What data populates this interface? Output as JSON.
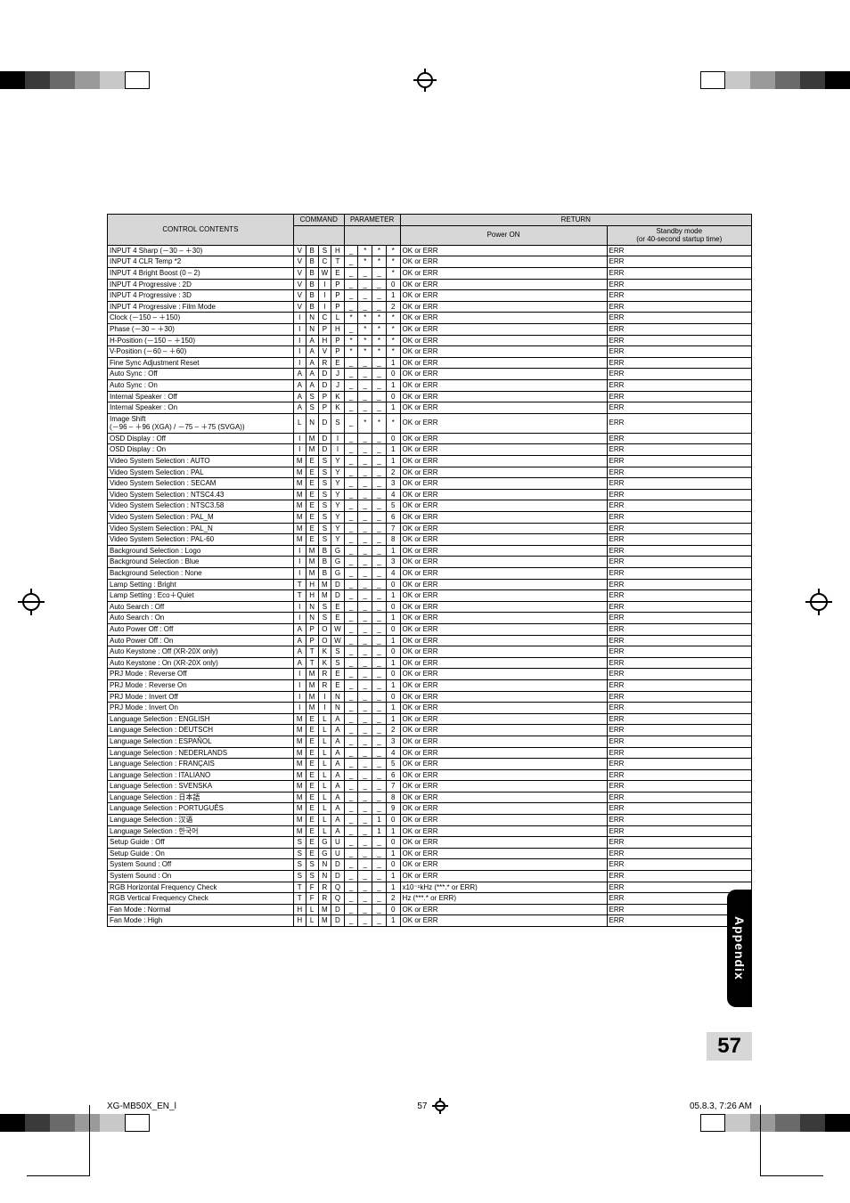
{
  "reg_colors": [
    "#000000",
    "#3a3a3a",
    "#6a6a6a",
    "#9a9a9a",
    "#c8c8c8",
    "#ffffff"
  ],
  "header": {
    "control_contents": "CONTROL CONTENTS",
    "command": "COMMAND",
    "parameter": "PARAMETER",
    "return": "RETURN",
    "power_on": "Power ON",
    "standby": "Standby mode\n(or 40-second startup time)"
  },
  "appendix": "Appendix",
  "page_number": "57",
  "footer_left": "XG-MB50X_EN_l",
  "footer_mid": "57",
  "footer_right": "05.8.3, 7:26 AM",
  "rows": [
    {
      "solid": true,
      "label": "INPUT 4 Sharp (－30 – ＋30)",
      "cmd": [
        "V",
        "B",
        "S",
        "H"
      ],
      "par": [
        "_",
        "*",
        "*",
        "*"
      ],
      "on": "OK or ERR",
      "sb": "ERR"
    },
    {
      "solid": true,
      "label": "INPUT 4 CLR Temp *2",
      "cmd": [
        "V",
        "B",
        "C",
        "T"
      ],
      "par": [
        "_",
        "*",
        "*",
        "*"
      ],
      "on": "OK or ERR",
      "sb": "ERR"
    },
    {
      "solid": true,
      "label": "INPUT 4 Bright Boost (0 – 2)",
      "cmd": [
        "V",
        "B",
        "W",
        "E"
      ],
      "par": [
        "_",
        "_",
        "_",
        "*"
      ],
      "on": "OK or ERR",
      "sb": "ERR"
    },
    {
      "solid": true,
      "label": "INPUT 4 Progressive : 2D",
      "cmd": [
        "V",
        "B",
        "I",
        "P"
      ],
      "par": [
        "_",
        "_",
        "_",
        "0"
      ],
      "on": "OK or ERR",
      "sb": "ERR"
    },
    {
      "label": "INPUT 4 Progressive : 3D",
      "cmd": [
        "V",
        "B",
        "I",
        "P"
      ],
      "par": [
        "_",
        "_",
        "_",
        "1"
      ],
      "on": "OK or ERR",
      "sb": "ERR"
    },
    {
      "label": "INPUT 4 Progressive : Film Mode",
      "cmd": [
        "V",
        "B",
        "I",
        "P"
      ],
      "par": [
        "_",
        "_",
        "_",
        "2"
      ],
      "on": "OK or ERR",
      "sb": "ERR"
    },
    {
      "solid": true,
      "label": "Clock (－150 – ＋150)",
      "cmd": [
        "I",
        "N",
        "C",
        "L"
      ],
      "par": [
        "*",
        "*",
        "*",
        "*"
      ],
      "on": "OK or ERR",
      "sb": "ERR"
    },
    {
      "solid": true,
      "label": "Phase (－30 – ＋30)",
      "cmd": [
        "I",
        "N",
        "P",
        "H"
      ],
      "par": [
        "_",
        "*",
        "*",
        "*"
      ],
      "on": "OK or ERR",
      "sb": "ERR"
    },
    {
      "solid": true,
      "label": "H-Position (－150 – ＋150)",
      "cmd": [
        "I",
        "A",
        "H",
        "P"
      ],
      "par": [
        "*",
        "*",
        "*",
        "*"
      ],
      "on": "OK or ERR",
      "sb": "ERR"
    },
    {
      "solid": true,
      "label": "V-Position (－60 – ＋60)",
      "cmd": [
        "I",
        "A",
        "V",
        "P"
      ],
      "par": [
        "*",
        "*",
        "*",
        "*"
      ],
      "on": "OK or ERR",
      "sb": "ERR"
    },
    {
      "solid": true,
      "label": "Fine Sync Adjustment Reset",
      "cmd": [
        "I",
        "A",
        "R",
        "E"
      ],
      "par": [
        "_",
        "_",
        "_",
        "1"
      ],
      "on": "OK or ERR",
      "sb": "ERR"
    },
    {
      "solid": true,
      "label": "Auto Sync : Off",
      "cmd": [
        "A",
        "A",
        "D",
        "J"
      ],
      "par": [
        "_",
        "_",
        "_",
        "0"
      ],
      "on": "OK or ERR",
      "sb": "ERR"
    },
    {
      "label": "Auto Sync : On",
      "cmd": [
        "A",
        "A",
        "D",
        "J"
      ],
      "par": [
        "_",
        "_",
        "_",
        "1"
      ],
      "on": "OK or ERR",
      "sb": "ERR"
    },
    {
      "solid": true,
      "label": "Internal Speaker : Off",
      "cmd": [
        "A",
        "S",
        "P",
        "K"
      ],
      "par": [
        "_",
        "_",
        "_",
        "0"
      ],
      "on": "OK or ERR",
      "sb": "ERR"
    },
    {
      "label": "Internal Speaker : On",
      "cmd": [
        "A",
        "S",
        "P",
        "K"
      ],
      "par": [
        "_",
        "_",
        "_",
        "1"
      ],
      "on": "OK or ERR",
      "sb": "ERR"
    },
    {
      "solid": true,
      "label": "Image Shift\n(－96 – ＋96 (XGA) / －75 – ＋75 (SVGA))",
      "cmd": [
        "L",
        "N",
        "D",
        "S"
      ],
      "par": [
        "_",
        "*",
        "*",
        "*"
      ],
      "on": "OK or ERR",
      "sb": "ERR"
    },
    {
      "solid": true,
      "label": "OSD Display : Off",
      "cmd": [
        "I",
        "M",
        "D",
        "I"
      ],
      "par": [
        "_",
        "_",
        "_",
        "0"
      ],
      "on": "OK or ERR",
      "sb": "ERR"
    },
    {
      "label": "OSD Display : On",
      "cmd": [
        "I",
        "M",
        "D",
        "I"
      ],
      "par": [
        "_",
        "_",
        "_",
        "1"
      ],
      "on": "OK or ERR",
      "sb": "ERR"
    },
    {
      "solid": true,
      "label": "Video System Selection : AUTO",
      "cmd": [
        "M",
        "E",
        "S",
        "Y"
      ],
      "par": [
        "_",
        "_",
        "_",
        "1"
      ],
      "on": "OK or ERR",
      "sb": "ERR"
    },
    {
      "label": "Video System Selection : PAL",
      "cmd": [
        "M",
        "E",
        "S",
        "Y"
      ],
      "par": [
        "_",
        "_",
        "_",
        "2"
      ],
      "on": "OK or ERR",
      "sb": "ERR"
    },
    {
      "label": "Video System Selection : SECAM",
      "cmd": [
        "M",
        "E",
        "S",
        "Y"
      ],
      "par": [
        "_",
        "_",
        "_",
        "3"
      ],
      "on": "OK or ERR",
      "sb": "ERR"
    },
    {
      "label": "Video System Selection : NTSC4.43",
      "cmd": [
        "M",
        "E",
        "S",
        "Y"
      ],
      "par": [
        "_",
        "_",
        "_",
        "4"
      ],
      "on": "OK or ERR",
      "sb": "ERR"
    },
    {
      "label": "Video System Selection : NTSC3.58",
      "cmd": [
        "M",
        "E",
        "S",
        "Y"
      ],
      "par": [
        "_",
        "_",
        "_",
        "5"
      ],
      "on": "OK or ERR",
      "sb": "ERR"
    },
    {
      "label": "Video System Selection : PAL_M",
      "cmd": [
        "M",
        "E",
        "S",
        "Y"
      ],
      "par": [
        "_",
        "_",
        "_",
        "6"
      ],
      "on": "OK or ERR",
      "sb": "ERR"
    },
    {
      "label": "Video System Selection : PAL_N",
      "cmd": [
        "M",
        "E",
        "S",
        "Y"
      ],
      "par": [
        "_",
        "_",
        "_",
        "7"
      ],
      "on": "OK or ERR",
      "sb": "ERR"
    },
    {
      "label": "Video System Selection : PAL-60",
      "cmd": [
        "M",
        "E",
        "S",
        "Y"
      ],
      "par": [
        "_",
        "_",
        "_",
        "8"
      ],
      "on": "OK or ERR",
      "sb": "ERR"
    },
    {
      "solid": true,
      "label": "Background Selection : Logo",
      "cmd": [
        "I",
        "M",
        "B",
        "G"
      ],
      "par": [
        "_",
        "_",
        "_",
        "1"
      ],
      "on": "OK or ERR",
      "sb": "ERR"
    },
    {
      "label": "Background Selection : Blue",
      "cmd": [
        "I",
        "M",
        "B",
        "G"
      ],
      "par": [
        "_",
        "_",
        "_",
        "3"
      ],
      "on": "OK or ERR",
      "sb": "ERR"
    },
    {
      "label": "Background Selection : None",
      "cmd": [
        "I",
        "M",
        "B",
        "G"
      ],
      "par": [
        "_",
        "_",
        "_",
        "4"
      ],
      "on": "OK or ERR",
      "sb": "ERR"
    },
    {
      "solid": true,
      "label": "Lamp Setting : Bright",
      "cmd": [
        "T",
        "H",
        "M",
        "D"
      ],
      "par": [
        "_",
        "_",
        "_",
        "0"
      ],
      "on": "OK or ERR",
      "sb": "ERR"
    },
    {
      "label": "Lamp Setting : Eco＋Quiet",
      "cmd": [
        "T",
        "H",
        "M",
        "D"
      ],
      "par": [
        "_",
        "_",
        "_",
        "1"
      ],
      "on": "OK or ERR",
      "sb": "ERR"
    },
    {
      "solid": true,
      "label": "Auto Search : Off",
      "cmd": [
        "I",
        "N",
        "S",
        "E"
      ],
      "par": [
        "_",
        "_",
        "_",
        "0"
      ],
      "on": "OK or ERR",
      "sb": "ERR"
    },
    {
      "label": "Auto Search : On",
      "cmd": [
        "I",
        "N",
        "S",
        "E"
      ],
      "par": [
        "_",
        "_",
        "_",
        "1"
      ],
      "on": "OK or ERR",
      "sb": "ERR"
    },
    {
      "solid": true,
      "label": "Auto Power Off : Off",
      "cmd": [
        "A",
        "P",
        "O",
        "W"
      ],
      "par": [
        "_",
        "_",
        "_",
        "0"
      ],
      "on": "OK or ERR",
      "sb": "ERR"
    },
    {
      "label": "Auto Power Off : On",
      "cmd": [
        "A",
        "P",
        "O",
        "W"
      ],
      "par": [
        "_",
        "_",
        "_",
        "1"
      ],
      "on": "OK or ERR",
      "sb": "ERR"
    },
    {
      "solid": true,
      "label": "Auto Keystone : Off (XR-20X only)",
      "cmd": [
        "A",
        "T",
        "K",
        "S"
      ],
      "par": [
        "_",
        "_",
        "_",
        "0"
      ],
      "on": "OK or ERR",
      "sb": "ERR"
    },
    {
      "label": "Auto Keystone : On (XR-20X only)",
      "cmd": [
        "A",
        "T",
        "K",
        "S"
      ],
      "par": [
        "_",
        "_",
        "_",
        "1"
      ],
      "on": "OK or ERR",
      "sb": "ERR"
    },
    {
      "solid": true,
      "label": "PRJ Mode : Reverse Off",
      "cmd": [
        "I",
        "M",
        "R",
        "E"
      ],
      "par": [
        "_",
        "_",
        "_",
        "0"
      ],
      "on": "OK or ERR",
      "sb": "ERR"
    },
    {
      "label": "PRJ Mode : Reverse On",
      "cmd": [
        "I",
        "M",
        "R",
        "E"
      ],
      "par": [
        "_",
        "_",
        "_",
        "1"
      ],
      "on": "OK or ERR",
      "sb": "ERR"
    },
    {
      "solid": true,
      "label": "PRJ Mode : Invert Off",
      "cmd": [
        "I",
        "M",
        "I",
        "N"
      ],
      "par": [
        "_",
        "_",
        "_",
        "0"
      ],
      "on": "OK or ERR",
      "sb": "ERR"
    },
    {
      "label": "PRJ Mode : Invert On",
      "cmd": [
        "I",
        "M",
        "I",
        "N"
      ],
      "par": [
        "_",
        "_",
        "_",
        "1"
      ],
      "on": "OK or ERR",
      "sb": "ERR"
    },
    {
      "solid": true,
      "label": "Language Selection : ENGLISH",
      "cmd": [
        "M",
        "E",
        "L",
        "A"
      ],
      "par": [
        "_",
        "_",
        "_",
        "1"
      ],
      "on": "OK or ERR",
      "sb": "ERR"
    },
    {
      "label": "Language Selection : DEUTSCH",
      "cmd": [
        "M",
        "E",
        "L",
        "A"
      ],
      "par": [
        "_",
        "_",
        "_",
        "2"
      ],
      "on": "OK or ERR",
      "sb": "ERR"
    },
    {
      "label": "Language Selection : ESPAÑOL",
      "cmd": [
        "M",
        "E",
        "L",
        "A"
      ],
      "par": [
        "_",
        "_",
        "_",
        "3"
      ],
      "on": "OK or ERR",
      "sb": "ERR"
    },
    {
      "label": "Language Selection : NEDERLANDS",
      "cmd": [
        "M",
        "E",
        "L",
        "A"
      ],
      "par": [
        "_",
        "_",
        "_",
        "4"
      ],
      "on": "OK or ERR",
      "sb": "ERR"
    },
    {
      "label": "Language Selection : FRANÇAIS",
      "cmd": [
        "M",
        "E",
        "L",
        "A"
      ],
      "par": [
        "_",
        "_",
        "_",
        "5"
      ],
      "on": "OK or ERR",
      "sb": "ERR"
    },
    {
      "label": "Language Selection : ITALIANO",
      "cmd": [
        "M",
        "E",
        "L",
        "A"
      ],
      "par": [
        "_",
        "_",
        "_",
        "6"
      ],
      "on": "OK or ERR",
      "sb": "ERR"
    },
    {
      "label": "Language Selection : SVENSKA",
      "cmd": [
        "M",
        "E",
        "L",
        "A"
      ],
      "par": [
        "_",
        "_",
        "_",
        "7"
      ],
      "on": "OK or ERR",
      "sb": "ERR"
    },
    {
      "label": "Language Selection : 日本語",
      "cmd": [
        "M",
        "E",
        "L",
        "A"
      ],
      "par": [
        "_",
        "_",
        "_",
        "8"
      ],
      "on": "OK or ERR",
      "sb": "ERR"
    },
    {
      "label": "Language Selection : PORTUGUÊS",
      "cmd": [
        "M",
        "E",
        "L",
        "A"
      ],
      "par": [
        "_",
        "_",
        "_",
        "9"
      ],
      "on": "OK or ERR",
      "sb": "ERR"
    },
    {
      "label": "Language Selection : 汉语",
      "cmd": [
        "M",
        "E",
        "L",
        "A"
      ],
      "par": [
        "_",
        "_",
        "1",
        "0"
      ],
      "on": "OK or ERR",
      "sb": "ERR"
    },
    {
      "label": "Language Selection : 한국어",
      "cmd": [
        "M",
        "E",
        "L",
        "A"
      ],
      "par": [
        "_",
        "_",
        "1",
        "1"
      ],
      "on": "OK or ERR",
      "sb": "ERR"
    },
    {
      "solid": true,
      "label": "Setup Guide : Off",
      "cmd": [
        "S",
        "E",
        "G",
        "U"
      ],
      "par": [
        "_",
        "_",
        "_",
        "0"
      ],
      "on": "OK or ERR",
      "sb": "ERR"
    },
    {
      "label": "Setup Guide : On",
      "cmd": [
        "S",
        "E",
        "G",
        "U"
      ],
      "par": [
        "_",
        "_",
        "_",
        "1"
      ],
      "on": "OK or ERR",
      "sb": "ERR"
    },
    {
      "solid": true,
      "label": "System Sound : Off",
      "cmd": [
        "S",
        "S",
        "N",
        "D"
      ],
      "par": [
        "_",
        "_",
        "_",
        "0"
      ],
      "on": "OK or ERR",
      "sb": "ERR"
    },
    {
      "label": "System Sound : On",
      "cmd": [
        "S",
        "S",
        "N",
        "D"
      ],
      "par": [
        "_",
        "_",
        "_",
        "1"
      ],
      "on": "OK or ERR",
      "sb": "ERR"
    },
    {
      "solid": true,
      "label": "RGB Horizontal Frequency Check",
      "cmd": [
        "T",
        "F",
        "R",
        "Q"
      ],
      "par": [
        "_",
        "_",
        "_",
        "1"
      ],
      "on": "x10⁻¹kHz (***.* or ERR)",
      "sb": "ERR"
    },
    {
      "solid": true,
      "label": "RGB Vertical Frequency Check",
      "cmd": [
        "T",
        "F",
        "R",
        "Q"
      ],
      "par": [
        "_",
        "_",
        "_",
        "2"
      ],
      "on": "Hz (***.* or ERR)",
      "sb": "ERR"
    },
    {
      "solid": true,
      "label": "Fan Mode : Normal",
      "cmd": [
        "H",
        "L",
        "M",
        "D"
      ],
      "par": [
        "_",
        "_",
        "_",
        "0"
      ],
      "on": "OK or ERR",
      "sb": "ERR"
    },
    {
      "label": "Fan Mode : High",
      "cmd": [
        "H",
        "L",
        "M",
        "D"
      ],
      "par": [
        "_",
        "_",
        "_",
        "1"
      ],
      "on": "OK or ERR",
      "sb": "ERR"
    }
  ]
}
